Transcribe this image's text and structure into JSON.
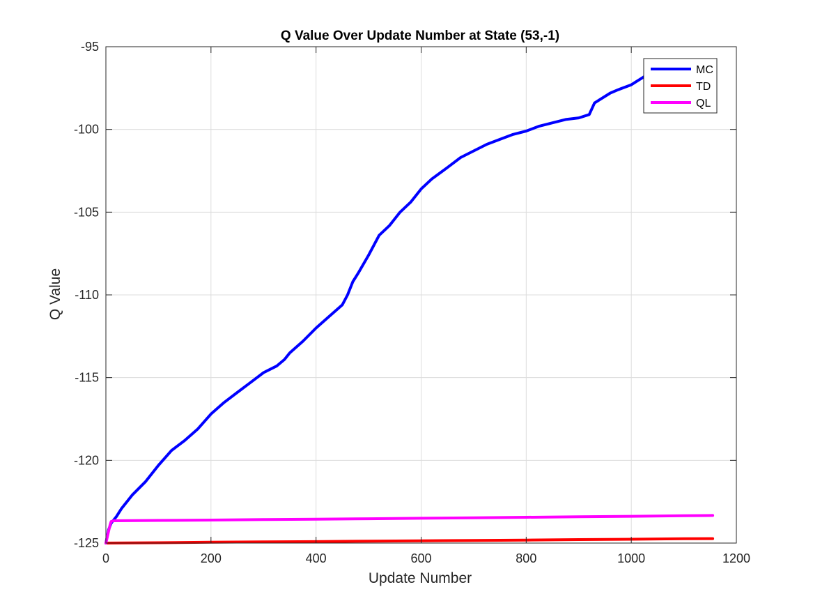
{
  "chart_data": {
    "type": "line",
    "title": "Q Value Over Update Number at State (53,-1)",
    "xlabel": "Update Number",
    "ylabel": "Q Value",
    "xlim": [
      0,
      1200
    ],
    "ylim": [
      -125,
      -95
    ],
    "xticks": [
      0,
      200,
      400,
      600,
      800,
      1000,
      1200
    ],
    "xtick_labels": [
      "0",
      "200",
      "400",
      "600",
      "800",
      "1000",
      "1200"
    ],
    "yticks": [
      -125,
      -120,
      -115,
      -110,
      -105,
      -100,
      -95
    ],
    "ytick_labels": [
      "-125",
      "-120",
      "-115",
      "-110",
      "-105",
      "-100",
      "-95"
    ],
    "grid": true,
    "legend_position": "top-right",
    "series": [
      {
        "name": "MC",
        "color": "#0000ff",
        "x": [
          0,
          5,
          10,
          15,
          20,
          30,
          50,
          75,
          100,
          125,
          150,
          175,
          200,
          225,
          250,
          275,
          300,
          325,
          340,
          350,
          375,
          400,
          425,
          450,
          460,
          470,
          480,
          500,
          520,
          540,
          560,
          580,
          600,
          620,
          650,
          675,
          700,
          725,
          750,
          775,
          800,
          825,
          850,
          875,
          900,
          920,
          930,
          940,
          960,
          975,
          1000,
          1010,
          1020,
          1030
        ],
        "y": [
          -125,
          -124.2,
          -123.8,
          -123.6,
          -123.4,
          -122.9,
          -122.1,
          -121.3,
          -120.3,
          -119.4,
          -118.8,
          -118.1,
          -117.2,
          -116.5,
          -115.9,
          -115.3,
          -114.7,
          -114.3,
          -113.9,
          -113.5,
          -112.8,
          -112.0,
          -111.3,
          -110.6,
          -110.0,
          -109.2,
          -108.7,
          -107.6,
          -106.4,
          -105.8,
          -105.0,
          -104.4,
          -103.6,
          -103.0,
          -102.3,
          -101.7,
          -101.3,
          -100.9,
          -100.6,
          -100.3,
          -100.1,
          -99.8,
          -99.6,
          -99.4,
          -99.3,
          -99.1,
          -98.4,
          -98.2,
          -97.8,
          -97.6,
          -97.3,
          -97.1,
          -96.9,
          -96.7
        ]
      },
      {
        "name": "TD",
        "color": "#ff0000",
        "x": [
          0,
          100,
          200,
          300,
          400,
          500,
          600,
          700,
          800,
          900,
          1000,
          1100,
          1155
        ],
        "y": [
          -125,
          -124.98,
          -124.95,
          -124.93,
          -124.91,
          -124.88,
          -124.86,
          -124.84,
          -124.82,
          -124.79,
          -124.77,
          -124.74,
          -124.73
        ]
      },
      {
        "name": "QL",
        "color": "#ff00ff",
        "x": [
          0,
          5,
          8,
          10,
          15,
          100,
          200,
          300,
          400,
          500,
          600,
          700,
          800,
          900,
          1000,
          1100,
          1155
        ],
        "y": [
          -125,
          -124.3,
          -123.9,
          -123.7,
          -123.65,
          -123.63,
          -123.61,
          -123.58,
          -123.56,
          -123.53,
          -123.5,
          -123.47,
          -123.44,
          -123.41,
          -123.38,
          -123.35,
          -123.33
        ]
      }
    ]
  }
}
